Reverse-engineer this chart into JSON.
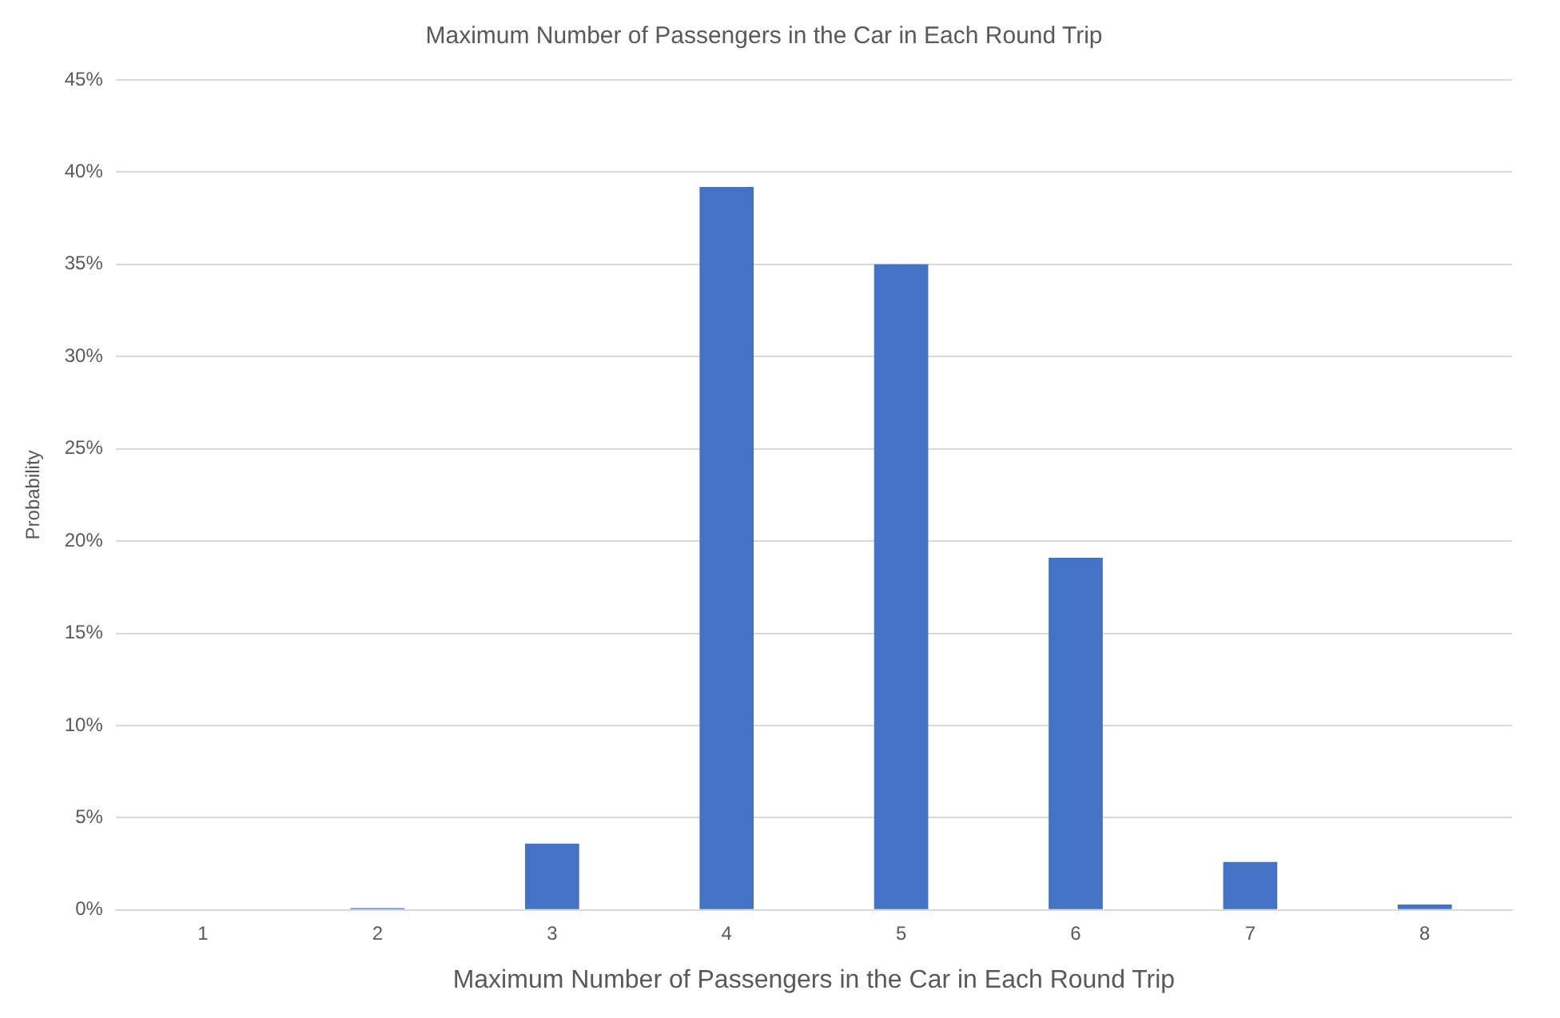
{
  "chart_data": {
    "type": "bar",
    "title": "Maximum Number of Passengers in the Car in Each Round Trip",
    "xlabel": "Maximum Number of Passengers in the Car in Each Round Trip",
    "ylabel": "Probability",
    "categories": [
      "1",
      "2",
      "3",
      "4",
      "5",
      "6",
      "7",
      "8"
    ],
    "values": [
      0,
      0.1,
      3.6,
      39.2,
      35.0,
      19.1,
      2.6,
      0.3
    ],
    "color": "#4472c4",
    "ylim": [
      0,
      45
    ],
    "yticks": [
      {
        "value": 0,
        "label": "0%"
      },
      {
        "value": 5,
        "label": "5%"
      },
      {
        "value": 10,
        "label": "10%"
      },
      {
        "value": 15,
        "label": "15%"
      },
      {
        "value": 20,
        "label": "20%"
      },
      {
        "value": 25,
        "label": "25%"
      },
      {
        "value": 30,
        "label": "30%"
      },
      {
        "value": 35,
        "label": "35%"
      },
      {
        "value": 40,
        "label": "40%"
      },
      {
        "value": 45,
        "label": "45%"
      }
    ],
    "grid": "y",
    "legend": false
  }
}
